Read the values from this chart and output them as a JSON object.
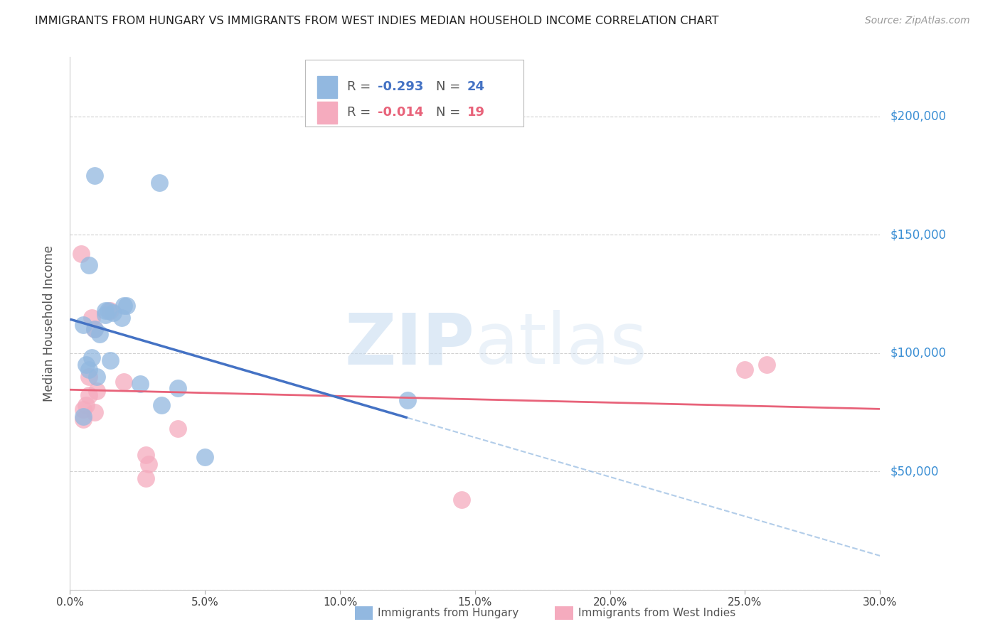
{
  "title": "IMMIGRANTS FROM HUNGARY VS IMMIGRANTS FROM WEST INDIES MEDIAN HOUSEHOLD INCOME CORRELATION CHART",
  "source": "Source: ZipAtlas.com",
  "xlabel_vals": [
    0.0,
    5.0,
    10.0,
    15.0,
    20.0,
    25.0,
    30.0
  ],
  "ylabel": "Median Household Income",
  "yticks": [
    0,
    50000,
    100000,
    150000,
    200000
  ],
  "ytick_labels": [
    "",
    "$50,000",
    "$100,000",
    "$150,000",
    "$200,000"
  ],
  "xlim": [
    0.0,
    30.0
  ],
  "ylim": [
    0,
    225000
  ],
  "watermark_zip": "ZIP",
  "watermark_atlas": "atlas",
  "legend_r1": "R = ",
  "legend_v1": "-0.293",
  "legend_n1_label": "N = ",
  "legend_n1": "24",
  "legend_r2": "R = ",
  "legend_v2": "-0.014",
  "legend_n2_label": "N = ",
  "legend_n2": "19",
  "blue_color": "#92B8E0",
  "pink_color": "#F5ABBE",
  "blue_line_color": "#4472C4",
  "pink_line_color": "#E8637A",
  "blue_dash_color": "#92B8E0",
  "hungary_x": [
    0.9,
    3.3,
    0.7,
    2.0,
    1.4,
    1.6,
    1.9,
    2.1,
    0.5,
    0.9,
    1.1,
    1.3,
    1.3,
    0.6,
    0.7,
    1.0,
    2.6,
    4.0,
    3.4,
    0.5,
    5.0,
    0.8,
    1.5,
    12.5
  ],
  "hungary_y": [
    175000,
    172000,
    137000,
    120000,
    118000,
    117000,
    115000,
    120000,
    112000,
    110000,
    108000,
    118000,
    116000,
    95000,
    93000,
    90000,
    87000,
    85000,
    78000,
    73000,
    56000,
    98000,
    97000,
    80000
  ],
  "west_indies_x": [
    0.4,
    1.5,
    0.8,
    0.9,
    2.0,
    1.0,
    0.7,
    0.6,
    0.5,
    0.5,
    2.8,
    2.9,
    2.8,
    25.0,
    25.8,
    0.7,
    0.9,
    4.0,
    14.5
  ],
  "west_indies_y": [
    142000,
    118000,
    115000,
    110000,
    88000,
    84000,
    82000,
    78000,
    76000,
    72000,
    57000,
    53000,
    47000,
    93000,
    95000,
    90000,
    75000,
    68000,
    38000
  ],
  "title_fontsize": 11.5,
  "source_fontsize": 10,
  "axis_label_fontsize": 11,
  "legend_fontsize": 13,
  "watermark_color": "#C8DCF0"
}
